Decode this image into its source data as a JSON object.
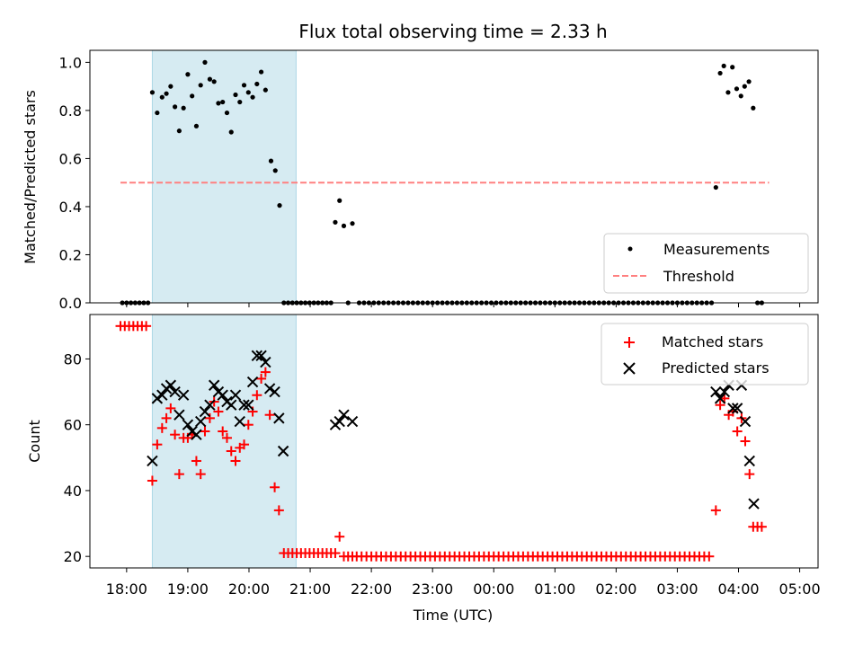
{
  "chart_data": {
    "title": "Flux total observing time = 2.33 h",
    "xlabel": "Time (UTC)",
    "x_unit": "hours since 18:00 UTC",
    "xlim": [
      -0.6,
      11.3
    ],
    "x_ticks": [
      {
        "value": 0,
        "label": "18:00"
      },
      {
        "value": 1,
        "label": "19:00"
      },
      {
        "value": 2,
        "label": "20:00"
      },
      {
        "value": 3,
        "label": "21:00"
      },
      {
        "value": 4,
        "label": "22:00"
      },
      {
        "value": 5,
        "label": "23:00"
      },
      {
        "value": 6,
        "label": "00:00"
      },
      {
        "value": 7,
        "label": "01:00"
      },
      {
        "value": 8,
        "label": "02:00"
      },
      {
        "value": 9,
        "label": "03:00"
      },
      {
        "value": 10,
        "label": "04:00"
      },
      {
        "value": 11,
        "label": "05:00"
      }
    ],
    "observing_window": {
      "start": 0.42,
      "end": 2.77,
      "color": "#add8e6"
    },
    "top": {
      "type": "scatter",
      "ylabel": "Matched/Predicted stars",
      "ylim": [
        0,
        1.05
      ],
      "y_ticks": [
        0,
        0.2,
        0.4,
        0.6,
        0.8,
        1.0
      ],
      "y_tick_labels": [
        "0.0",
        "0.2",
        "0.4",
        "0.6",
        "0.8",
        "1.0"
      ],
      "legend": {
        "position": "lower-right",
        "measurements_label": "Measurements",
        "threshold_label": "Threshold"
      },
      "threshold": {
        "value": 0.5,
        "x_start": -0.1,
        "x_end": 10.5,
        "color": "#ff8080"
      },
      "measurements": [
        [
          -0.07,
          0
        ],
        [
          0.0,
          0
        ],
        [
          0.07,
          0
        ],
        [
          0.14,
          0
        ],
        [
          0.21,
          0
        ],
        [
          0.28,
          0
        ],
        [
          0.35,
          0
        ],
        [
          0.42,
          0.875
        ],
        [
          0.5,
          0.79
        ],
        [
          0.58,
          0.855
        ],
        [
          0.65,
          0.87
        ],
        [
          0.72,
          0.9
        ],
        [
          0.79,
          0.815
        ],
        [
          0.86,
          0.715
        ],
        [
          0.93,
          0.81
        ],
        [
          1.0,
          0.95
        ],
        [
          1.07,
          0.86
        ],
        [
          1.14,
          0.735
        ],
        [
          1.21,
          0.905
        ],
        [
          1.28,
          1.0
        ],
        [
          1.36,
          0.93
        ],
        [
          1.43,
          0.92
        ],
        [
          1.5,
          0.83
        ],
        [
          1.57,
          0.835
        ],
        [
          1.64,
          0.79
        ],
        [
          1.71,
          0.71
        ],
        [
          1.78,
          0.865
        ],
        [
          1.85,
          0.835
        ],
        [
          1.92,
          0.905
        ],
        [
          1.99,
          0.875
        ],
        [
          2.06,
          0.855
        ],
        [
          2.13,
          0.91
        ],
        [
          2.2,
          0.96
        ],
        [
          2.27,
          0.885
        ],
        [
          2.36,
          0.59
        ],
        [
          2.43,
          0.55
        ],
        [
          2.5,
          0.405
        ],
        [
          2.57,
          0
        ],
        [
          2.64,
          0
        ],
        [
          2.71,
          0
        ],
        [
          2.78,
          0
        ],
        [
          2.85,
          0
        ],
        [
          2.92,
          0
        ],
        [
          2.99,
          0
        ],
        [
          3.06,
          0
        ],
        [
          3.13,
          0
        ],
        [
          3.2,
          0
        ],
        [
          3.27,
          0
        ],
        [
          3.34,
          0
        ],
        [
          3.41,
          0.335
        ],
        [
          3.48,
          0.425
        ],
        [
          3.55,
          0.32
        ],
        [
          3.62,
          0
        ],
        [
          3.69,
          0.33
        ],
        [
          3.8,
          0
        ],
        [
          3.88,
          0
        ],
        [
          3.96,
          0
        ],
        [
          4.04,
          0
        ],
        [
          4.12,
          0
        ],
        [
          4.2,
          0
        ],
        [
          4.28,
          0
        ],
        [
          4.36,
          0
        ],
        [
          4.44,
          0
        ],
        [
          4.52,
          0
        ],
        [
          4.6,
          0
        ],
        [
          4.68,
          0
        ],
        [
          4.76,
          0
        ],
        [
          4.84,
          0
        ],
        [
          4.92,
          0
        ],
        [
          5.0,
          0
        ],
        [
          5.08,
          0
        ],
        [
          5.16,
          0
        ],
        [
          5.24,
          0
        ],
        [
          5.32,
          0
        ],
        [
          5.4,
          0
        ],
        [
          5.48,
          0
        ],
        [
          5.56,
          0
        ],
        [
          5.64,
          0
        ],
        [
          5.72,
          0
        ],
        [
          5.8,
          0
        ],
        [
          5.88,
          0
        ],
        [
          5.96,
          0
        ],
        [
          6.04,
          0
        ],
        [
          6.12,
          0
        ],
        [
          6.2,
          0
        ],
        [
          6.28,
          0
        ],
        [
          6.36,
          0
        ],
        [
          6.44,
          0
        ],
        [
          6.52,
          0
        ],
        [
          6.6,
          0
        ],
        [
          6.68,
          0
        ],
        [
          6.76,
          0
        ],
        [
          6.84,
          0
        ],
        [
          6.92,
          0
        ],
        [
          7.0,
          0
        ],
        [
          7.08,
          0
        ],
        [
          7.16,
          0
        ],
        [
          7.24,
          0
        ],
        [
          7.32,
          0
        ],
        [
          7.4,
          0
        ],
        [
          7.48,
          0
        ],
        [
          7.56,
          0
        ],
        [
          7.64,
          0
        ],
        [
          7.72,
          0
        ],
        [
          7.8,
          0
        ],
        [
          7.88,
          0
        ],
        [
          7.96,
          0
        ],
        [
          8.04,
          0
        ],
        [
          8.12,
          0
        ],
        [
          8.2,
          0
        ],
        [
          8.28,
          0
        ],
        [
          8.36,
          0
        ],
        [
          8.44,
          0
        ],
        [
          8.52,
          0
        ],
        [
          8.6,
          0
        ],
        [
          8.68,
          0
        ],
        [
          8.76,
          0
        ],
        [
          8.84,
          0
        ],
        [
          8.92,
          0
        ],
        [
          9.0,
          0
        ],
        [
          9.08,
          0
        ],
        [
          9.16,
          0
        ],
        [
          9.24,
          0
        ],
        [
          9.32,
          0
        ],
        [
          9.4,
          0
        ],
        [
          9.48,
          0
        ],
        [
          9.56,
          0
        ],
        [
          9.63,
          0.48
        ],
        [
          9.7,
          0.955
        ],
        [
          9.76,
          0.985
        ],
        [
          9.83,
          0.875
        ],
        [
          9.9,
          0.98
        ],
        [
          9.97,
          0.89
        ],
        [
          10.04,
          0.86
        ],
        [
          10.1,
          0.9
        ],
        [
          10.17,
          0.92
        ],
        [
          10.24,
          0.81
        ],
        [
          10.31,
          0
        ],
        [
          10.38,
          0
        ]
      ]
    },
    "bottom": {
      "type": "scatter",
      "ylabel": "Count",
      "ylim": [
        16.5,
        93.5
      ],
      "y_ticks": [
        20,
        40,
        60,
        80
      ],
      "y_tick_labels": [
        "20",
        "40",
        "60",
        "80"
      ],
      "legend": {
        "position": "upper-right",
        "matched_label": "Matched stars",
        "predicted_label": "Predicted stars"
      },
      "matched": [
        [
          -0.1,
          90
        ],
        [
          -0.03,
          90
        ],
        [
          0.04,
          90
        ],
        [
          0.11,
          90
        ],
        [
          0.18,
          90
        ],
        [
          0.25,
          90
        ],
        [
          0.32,
          90
        ],
        [
          0.42,
          43
        ],
        [
          0.5,
          54
        ],
        [
          0.58,
          59
        ],
        [
          0.65,
          62
        ],
        [
          0.72,
          65
        ],
        [
          0.79,
          57
        ],
        [
          0.86,
          45
        ],
        [
          0.93,
          56
        ],
        [
          1.0,
          56
        ],
        [
          1.07,
          57
        ],
        [
          1.14,
          49
        ],
        [
          1.21,
          45
        ],
        [
          1.28,
          58
        ],
        [
          1.36,
          62
        ],
        [
          1.43,
          67
        ],
        [
          1.5,
          64
        ],
        [
          1.57,
          58
        ],
        [
          1.64,
          56
        ],
        [
          1.71,
          52
        ],
        [
          1.78,
          49
        ],
        [
          1.85,
          53
        ],
        [
          1.92,
          54
        ],
        [
          1.99,
          60
        ],
        [
          2.06,
          64
        ],
        [
          2.13,
          69
        ],
        [
          2.2,
          74
        ],
        [
          2.27,
          76
        ],
        [
          2.34,
          63
        ],
        [
          2.42,
          41
        ],
        [
          2.49,
          34
        ],
        [
          2.57,
          21
        ],
        [
          2.64,
          21
        ],
        [
          2.71,
          21
        ],
        [
          2.78,
          21
        ],
        [
          2.85,
          21
        ],
        [
          2.92,
          21
        ],
        [
          2.99,
          21
        ],
        [
          3.06,
          21
        ],
        [
          3.13,
          21
        ],
        [
          3.2,
          21
        ],
        [
          3.27,
          21
        ],
        [
          3.34,
          21
        ],
        [
          3.41,
          21
        ],
        [
          3.48,
          26
        ],
        [
          3.55,
          20
        ],
        [
          3.62,
          20
        ],
        [
          3.69,
          20
        ],
        [
          3.76,
          20
        ],
        [
          3.84,
          20
        ],
        [
          3.92,
          20
        ],
        [
          4.0,
          20
        ],
        [
          4.08,
          20
        ],
        [
          4.16,
          20
        ],
        [
          4.24,
          20
        ],
        [
          4.32,
          20
        ],
        [
          4.4,
          20
        ],
        [
          4.48,
          20
        ],
        [
          4.56,
          20
        ],
        [
          4.64,
          20
        ],
        [
          4.72,
          20
        ],
        [
          4.8,
          20
        ],
        [
          4.88,
          20
        ],
        [
          4.96,
          20
        ],
        [
          5.04,
          20
        ],
        [
          5.12,
          20
        ],
        [
          5.2,
          20
        ],
        [
          5.28,
          20
        ],
        [
          5.36,
          20
        ],
        [
          5.44,
          20
        ],
        [
          5.52,
          20
        ],
        [
          5.6,
          20
        ],
        [
          5.68,
          20
        ],
        [
          5.76,
          20
        ],
        [
          5.84,
          20
        ],
        [
          5.92,
          20
        ],
        [
          6.0,
          20
        ],
        [
          6.08,
          20
        ],
        [
          6.16,
          20
        ],
        [
          6.24,
          20
        ],
        [
          6.32,
          20
        ],
        [
          6.4,
          20
        ],
        [
          6.48,
          20
        ],
        [
          6.56,
          20
        ],
        [
          6.64,
          20
        ],
        [
          6.72,
          20
        ],
        [
          6.8,
          20
        ],
        [
          6.88,
          20
        ],
        [
          6.96,
          20
        ],
        [
          7.04,
          20
        ],
        [
          7.12,
          20
        ],
        [
          7.2,
          20
        ],
        [
          7.28,
          20
        ],
        [
          7.36,
          20
        ],
        [
          7.44,
          20
        ],
        [
          7.52,
          20
        ],
        [
          7.6,
          20
        ],
        [
          7.68,
          20
        ],
        [
          7.76,
          20
        ],
        [
          7.84,
          20
        ],
        [
          7.92,
          20
        ],
        [
          8.0,
          20
        ],
        [
          8.08,
          20
        ],
        [
          8.16,
          20
        ],
        [
          8.24,
          20
        ],
        [
          8.32,
          20
        ],
        [
          8.4,
          20
        ],
        [
          8.48,
          20
        ],
        [
          8.56,
          20
        ],
        [
          8.64,
          20
        ],
        [
          8.72,
          20
        ],
        [
          8.8,
          20
        ],
        [
          8.88,
          20
        ],
        [
          8.96,
          20
        ],
        [
          9.04,
          20
        ],
        [
          9.12,
          20
        ],
        [
          9.2,
          20
        ],
        [
          9.28,
          20
        ],
        [
          9.36,
          20
        ],
        [
          9.44,
          20
        ],
        [
          9.52,
          20
        ],
        [
          9.63,
          34
        ],
        [
          9.7,
          66
        ],
        [
          9.77,
          68
        ],
        [
          9.84,
          63
        ],
        [
          9.91,
          64
        ],
        [
          9.98,
          58
        ],
        [
          10.05,
          62
        ],
        [
          10.11,
          55
        ],
        [
          10.18,
          45
        ],
        [
          10.24,
          29
        ],
        [
          10.31,
          29
        ],
        [
          10.38,
          29
        ]
      ],
      "predicted": [
        [
          0.42,
          49
        ],
        [
          0.5,
          68
        ],
        [
          0.58,
          69
        ],
        [
          0.65,
          71
        ],
        [
          0.72,
          72
        ],
        [
          0.79,
          70
        ],
        [
          0.86,
          63
        ],
        [
          0.93,
          69
        ],
        [
          1.0,
          60
        ],
        [
          1.07,
          58
        ],
        [
          1.14,
          57
        ],
        [
          1.21,
          61
        ],
        [
          1.28,
          64
        ],
        [
          1.36,
          66
        ],
        [
          1.43,
          72
        ],
        [
          1.5,
          70
        ],
        [
          1.57,
          69
        ],
        [
          1.64,
          67
        ],
        [
          1.71,
          66
        ],
        [
          1.78,
          69
        ],
        [
          1.85,
          61
        ],
        [
          1.92,
          66
        ],
        [
          1.99,
          66
        ],
        [
          2.06,
          73
        ],
        [
          2.13,
          81
        ],
        [
          2.2,
          81
        ],
        [
          2.27,
          79
        ],
        [
          2.34,
          71
        ],
        [
          2.42,
          70
        ],
        [
          2.49,
          62
        ],
        [
          2.56,
          52
        ],
        [
          3.41,
          60
        ],
        [
          3.48,
          61
        ],
        [
          3.55,
          63
        ],
        [
          3.69,
          61
        ],
        [
          9.63,
          70
        ],
        [
          9.7,
          68
        ],
        [
          9.77,
          70
        ],
        [
          9.84,
          72
        ],
        [
          9.91,
          65
        ],
        [
          9.98,
          65
        ],
        [
          10.05,
          72
        ],
        [
          10.11,
          61
        ],
        [
          10.18,
          49
        ],
        [
          10.25,
          36
        ]
      ]
    },
    "colors": {
      "measurement": "#000000",
      "threshold": "#ff8080",
      "matched": "#ff0000",
      "predicted": "#000000",
      "window": "#add8e6"
    }
  }
}
